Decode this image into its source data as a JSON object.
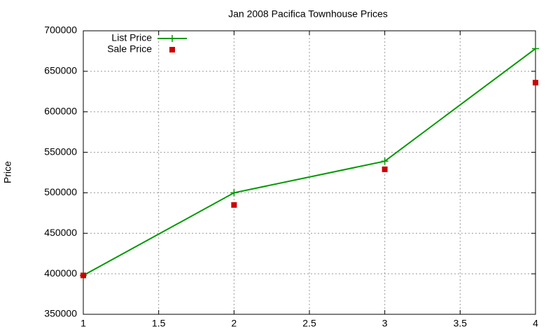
{
  "chart_data": {
    "type": "line",
    "title": "Jan 2008 Pacifica Townhouse Prices",
    "y_label": "Price",
    "x": [
      1,
      2,
      3,
      4
    ],
    "series": [
      {
        "name": "List Price",
        "color": "#009900",
        "style": "linespoints",
        "values": [
          398000,
          500000,
          539000,
          678000
        ]
      },
      {
        "name": "Sale Price",
        "color": "#cc0000",
        "style": "points",
        "values": [
          398000,
          485000,
          529000,
          636000
        ]
      }
    ],
    "xlim": [
      1,
      4
    ],
    "xticks": [
      1,
      1.5,
      2,
      2.5,
      3,
      3.5,
      4
    ],
    "ylim": [
      350000,
      700000
    ],
    "yticks": [
      350000,
      400000,
      450000,
      500000,
      550000,
      600000,
      650000,
      700000
    ],
    "grid": true,
    "legend": "top-left"
  }
}
